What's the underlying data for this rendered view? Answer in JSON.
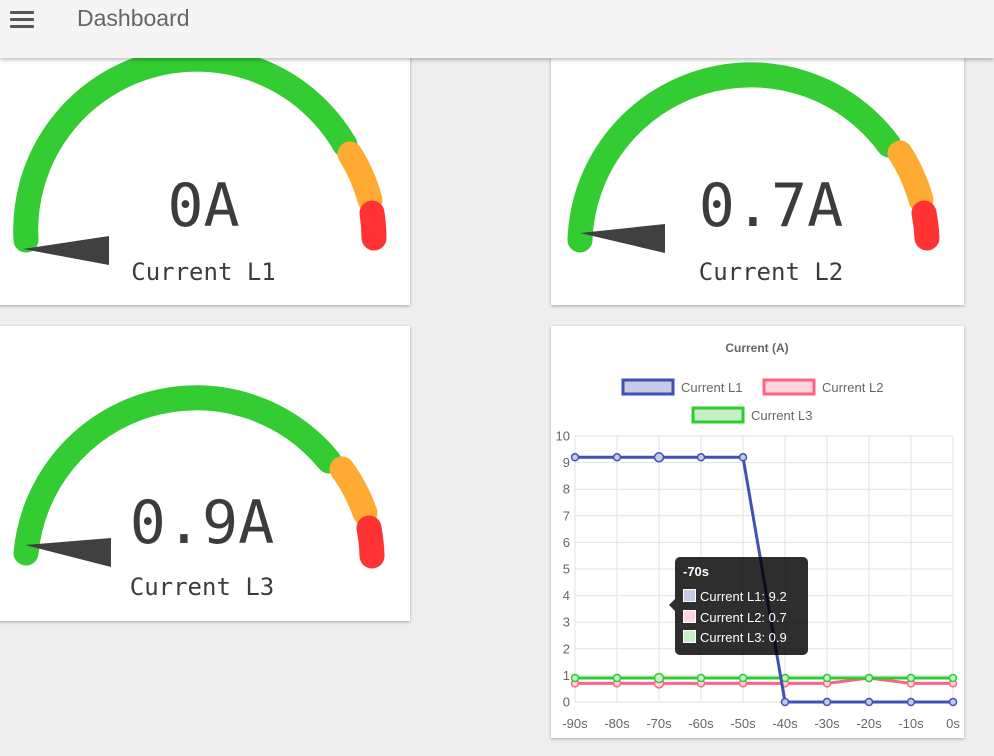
{
  "header": {
    "title": "Dashboard",
    "menu_icon": "hamburger-menu-icon"
  },
  "colors": {
    "gauge_green": "#33cc33",
    "gauge_orange": "#ffaa33",
    "gauge_red": "#ff3333",
    "needle": "#404040",
    "series_l1": "#3f51b5",
    "series_l2": "#ff6384",
    "series_l3": "#2ecc2e"
  },
  "gauges": [
    {
      "value": "0A",
      "label": "Current L1",
      "level": 0
    },
    {
      "value": "0.7A",
      "label": "Current L2",
      "level": 0.7
    },
    {
      "value": "0.9A",
      "label": "Current L3",
      "level": 0.9
    }
  ],
  "chart_data": {
    "type": "line",
    "title": "Current (A)",
    "categories": [
      "-90s",
      "-80s",
      "-70s",
      "-60s",
      "-50s",
      "-40s",
      "-30s",
      "-20s",
      "-10s",
      "0s"
    ],
    "series": [
      {
        "name": "Current L1",
        "values": [
          9.2,
          9.2,
          9.2,
          9.2,
          9.2,
          0,
          0,
          0,
          0,
          0
        ]
      },
      {
        "name": "Current L2",
        "values": [
          0.7,
          0.7,
          0.7,
          0.7,
          0.7,
          0.7,
          0.7,
          0.9,
          0.7,
          0.7
        ]
      },
      {
        "name": "Current L3",
        "values": [
          0.9,
          0.9,
          0.9,
          0.9,
          0.9,
          0.9,
          0.9,
          0.9,
          0.9,
          0.9
        ]
      }
    ],
    "ylim": [
      0,
      10
    ],
    "y_ticks": [
      "0",
      "1",
      "2",
      "3",
      "4",
      "5",
      "6",
      "7",
      "8",
      "9",
      "10"
    ],
    "grid": true,
    "legend": "top",
    "tooltip": {
      "title": "-70s",
      "lines": [
        "Current L1: 9.2",
        "Current L2: 0.7",
        "Current L3: 0.9"
      ]
    }
  }
}
